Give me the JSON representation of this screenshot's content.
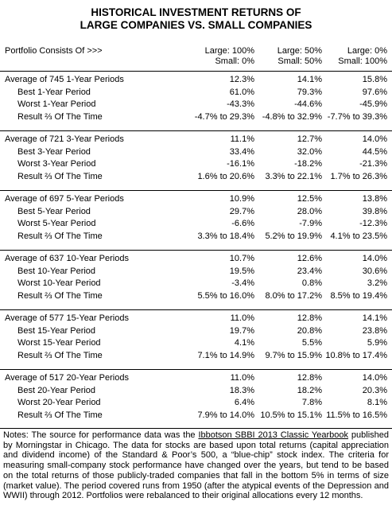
{
  "header": {
    "title_line1": "HISTORICAL INVESTMENT RETURNS OF",
    "title_line2": "LARGE COMPANIES VS. SMALL COMPANIES"
  },
  "table": {
    "columns_label": "Portfolio Consists Of >>>",
    "columns": [
      [
        "Large: 100%",
        "Small: 0%"
      ],
      [
        "Large: 50%",
        "Small: 50%"
      ],
      [
        "Large: 0%",
        "Small: 100%"
      ]
    ],
    "sections": [
      [
        [
          "Average of 745 1-Year Periods",
          "12.3%",
          "14.1%",
          "15.8%"
        ],
        [
          "Best 1-Year Period",
          "61.0%",
          "79.3%",
          "97.6%"
        ],
        [
          "Worst 1-Year Period",
          "-43.3%",
          "-44.6%",
          "-45.9%"
        ],
        [
          "Result ⅔ Of The Time",
          "-4.7% to 29.3%",
          "-4.8% to 32.9%",
          "-7.7% to 39.3%"
        ]
      ],
      [
        [
          "Average of 721 3-Year Periods",
          "11.1%",
          "12.7%",
          "14.0%"
        ],
        [
          "Best 3-Year Period",
          "33.4%",
          "32.0%",
          "44.5%"
        ],
        [
          "Worst 3-Year Period",
          "-16.1%",
          "-18.2%",
          "-21.3%"
        ],
        [
          "Result ⅔ Of The Time",
          "1.6% to 20.6%",
          "3.3% to 22.1%",
          "1.7% to 26.3%"
        ]
      ],
      [
        [
          "Average of 697 5-Year Periods",
          "10.9%",
          "12.5%",
          "13.8%"
        ],
        [
          "Best 5-Year Period",
          "29.7%",
          "28.0%",
          "39.8%"
        ],
        [
          "Worst 5-Year Period",
          "-6.6%",
          "-7.9%",
          "-12.3%"
        ],
        [
          "Result ⅔ Of The Time",
          "3.3% to 18.4%",
          "5.2% to 19.9%",
          "4.1% to 23.5%"
        ]
      ],
      [
        [
          "Average of 637 10-Year Periods",
          "10.7%",
          "12.6%",
          "14.0%"
        ],
        [
          "Best 10-Year Period",
          "19.5%",
          "23.4%",
          "30.6%"
        ],
        [
          "Worst 10-Year Period",
          "-3.4%",
          "0.8%",
          "3.2%"
        ],
        [
          "Result ⅔ Of The Time",
          "5.5% to 16.0%",
          "8.0% to 17.2%",
          "8.5% to 19.4%"
        ]
      ],
      [
        [
          "Average of 577 15-Year Periods",
          "11.0%",
          "12.8%",
          "14.1%"
        ],
        [
          "Best 15-Year Period",
          "19.7%",
          "20.8%",
          "23.8%"
        ],
        [
          "Worst 15-Year Period",
          "4.1%",
          "5.5%",
          "5.9%"
        ],
        [
          "Result ⅔ Of The Time",
          "7.1% to 14.9%",
          "9.7% to 15.9%",
          "10.8% to 17.4%"
        ]
      ],
      [
        [
          "Average of 517 20-Year Periods",
          "11.0%",
          "12.8%",
          "14.0%"
        ],
        [
          "Best 20-Year Period",
          "18.3%",
          "18.2%",
          "20.3%"
        ],
        [
          "Worst 20-Year Period",
          "6.4%",
          "7.8%",
          "8.1%"
        ],
        [
          "Result ⅔ Of The Time",
          "7.9% to 14.0%",
          "10.5% to 15.1%",
          "11.5% to 16.5%"
        ]
      ]
    ]
  },
  "notes": {
    "before": "Notes: The source for performance data was the ",
    "link": "Ibbotson SBBI 2013 Classic Yearbook",
    "after": " published by Morningstar in Chicago. The data for stocks are based upon total returns (capital appreciation and dividend income) of the Standard & Poor’s 500, a “blue-chip” stock index. The criteria for measuring small-company stock performance have changed over the years, but tend to be based on the total returns of those publicly-traded companies that fall in the bottom 5% in terms of size (market value). The period covered runs from 1950 (after the atypical events of the Depression and WWII) through 2012. Portfolios were rebalanced to their original allocations every 12 months."
  }
}
